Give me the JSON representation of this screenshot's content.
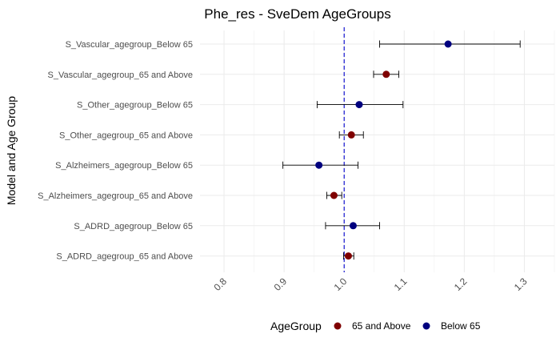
{
  "chart_data": {
    "type": "scatter",
    "title": "Phe_res - SveDem AgeGroups",
    "xlabel": "",
    "ylabel": "Model and Age Group",
    "xlim": [
      0.76,
      1.35
    ],
    "xticks": [
      "0.8",
      "0.9",
      "1.0",
      "1.1",
      "1.2",
      "1.3"
    ],
    "reference_line": 1.0,
    "reference_line_color": "#0000cc",
    "grid": true,
    "legend_position": "bottom",
    "legend_title": "AgeGroup",
    "series_colors": {
      "65 and Above": "#7f0000",
      "Below 65": "#00007f"
    },
    "legend": [
      {
        "name": "65 and Above",
        "color": "#7f0000"
      },
      {
        "name": "Below 65",
        "color": "#00007f"
      }
    ],
    "points": [
      {
        "label": "S_Vascular_agegroup_Below 65",
        "group": "Below 65",
        "estimate": 1.173,
        "lower": 1.059,
        "upper": 1.293
      },
      {
        "label": "S_Vascular_agegroup_65 and Above",
        "group": "65 and Above",
        "estimate": 1.07,
        "lower": 1.049,
        "upper": 1.091
      },
      {
        "label": "S_Other_agegroup_Below 65",
        "group": "Below 65",
        "estimate": 1.025,
        "lower": 0.955,
        "upper": 1.098
      },
      {
        "label": "S_Other_agegroup_65 and Above",
        "group": "65 and Above",
        "estimate": 1.012,
        "lower": 0.992,
        "upper": 1.032
      },
      {
        "label": "S_Alzheimers_agegroup_Below 65",
        "group": "Below 65",
        "estimate": 0.958,
        "lower": 0.898,
        "upper": 1.023
      },
      {
        "label": "S_Alzheimers_agegroup_65 and Above",
        "group": "65 and Above",
        "estimate": 0.983,
        "lower": 0.971,
        "upper": 0.996
      },
      {
        "label": "S_ADRD_agegroup_Below 65",
        "group": "Below 65",
        "estimate": 1.015,
        "lower": 0.969,
        "upper": 1.059
      },
      {
        "label": "S_ADRD_agegroup_65 and Above",
        "group": "65 and Above",
        "estimate": 1.007,
        "lower": 0.999,
        "upper": 1.016
      }
    ]
  }
}
